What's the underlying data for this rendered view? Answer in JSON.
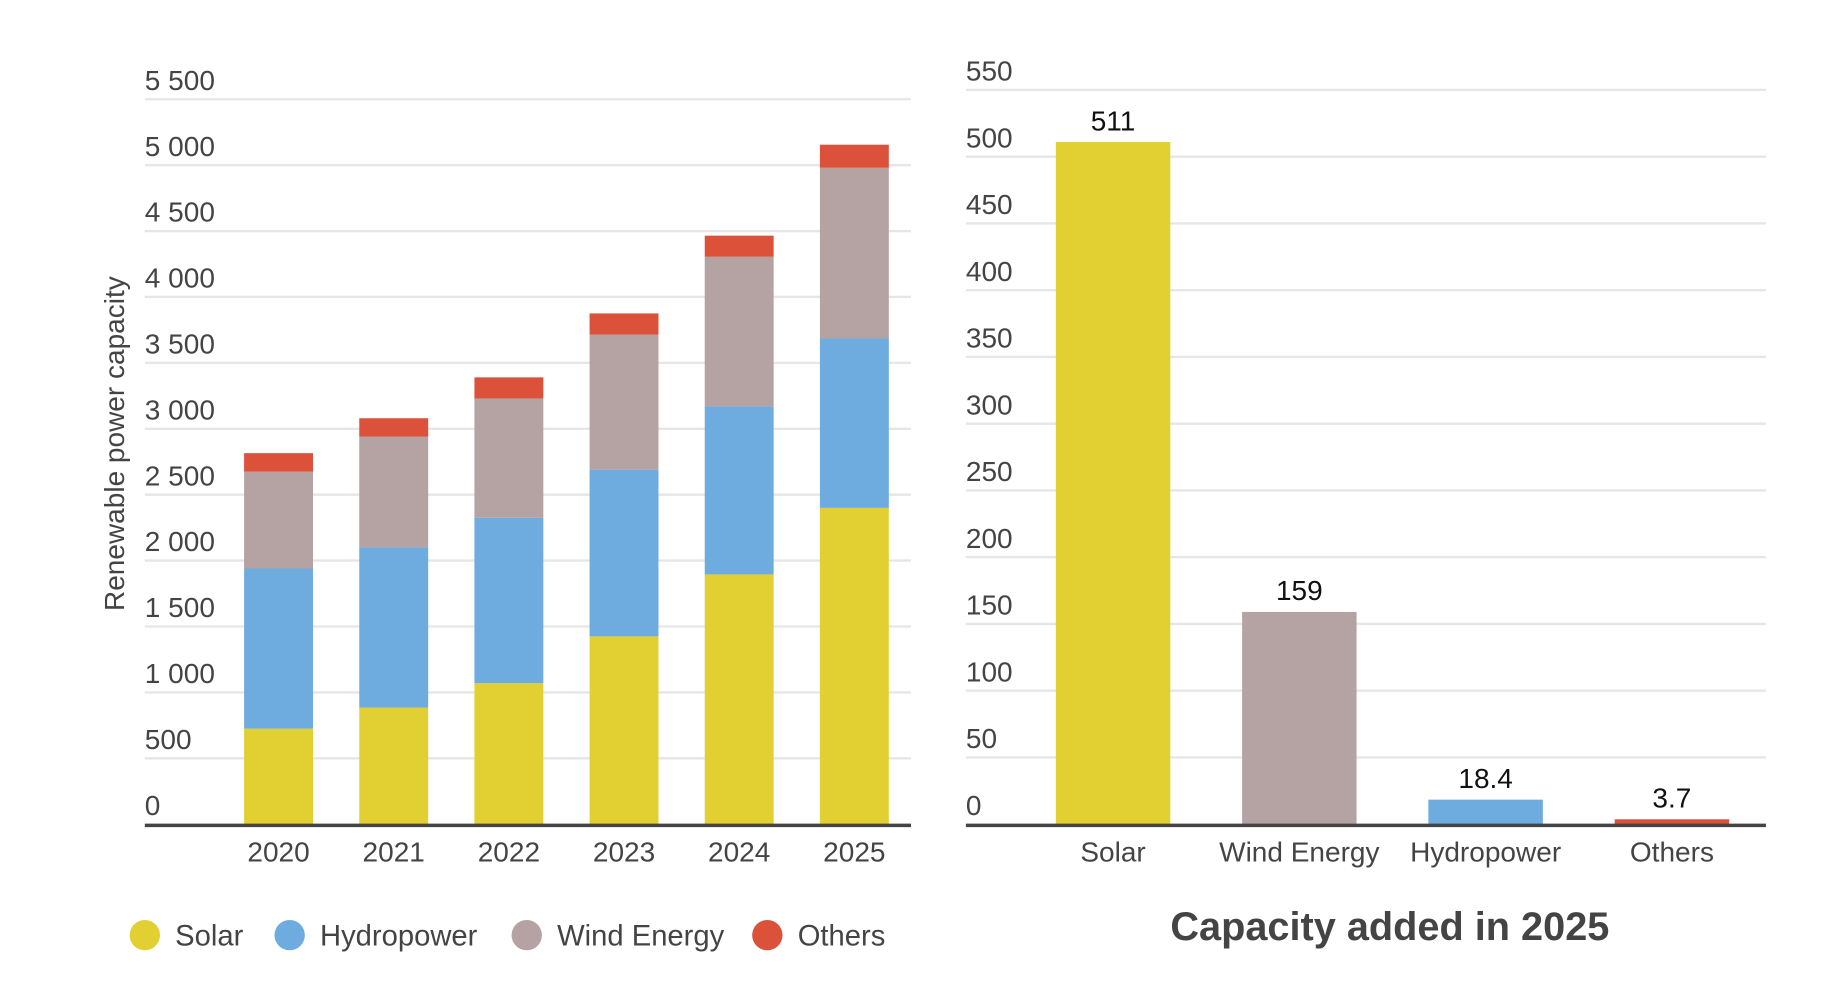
{
  "colors": {
    "Solar": "#E2D033",
    "Hydropower": "#6EABDF",
    "Wind Energy": "#B5A2A3",
    "Others": "#DC513A"
  },
  "chart_data": [
    {
      "type": "bar",
      "stacked": true,
      "title": "",
      "xlabel": "",
      "ylabel": "Renewable power capacity",
      "categories": [
        "2020",
        "2021",
        "2022",
        "2023",
        "2024",
        "2025"
      ],
      "yticks": [
        0,
        500,
        1000,
        1500,
        2000,
        2500,
        3000,
        3500,
        4000,
        4500,
        5000,
        5500
      ],
      "ytick_labels": [
        "0",
        "500",
        "1 000",
        "1 500",
        "2 000",
        "2 500",
        "3 000",
        "3 500",
        "4 000",
        "4 500",
        "5 000",
        "5 500"
      ],
      "ylim": [
        0,
        5500
      ],
      "grid": true,
      "legend": "bottom",
      "series": [
        {
          "name": "Solar",
          "values": [
            725,
            885,
            1070,
            1425,
            1895,
            2400
          ]
        },
        {
          "name": "Hydropower",
          "values": [
            1215,
            1215,
            1255,
            1265,
            1275,
            1285
          ]
        },
        {
          "name": "Wind Energy",
          "values": [
            735,
            840,
            905,
            1025,
            1135,
            1295
          ]
        },
        {
          "name": "Others",
          "values": [
            140,
            140,
            160,
            160,
            160,
            175
          ]
        }
      ],
      "legend_entries": [
        "Solar",
        "Hydropower",
        "Wind Energy",
        "Others"
      ]
    },
    {
      "type": "bar",
      "title": "Capacity added in 2025",
      "xlabel": "",
      "ylabel": "",
      "categories": [
        "Solar",
        "Wind Energy",
        "Hydropower",
        "Others"
      ],
      "values": [
        511,
        159,
        18.4,
        3.7
      ],
      "data_labels": [
        "511",
        "159",
        "18.4",
        "3.7"
      ],
      "yticks": [
        0,
        50,
        100,
        150,
        200,
        250,
        300,
        350,
        400,
        450,
        500,
        550
      ],
      "ytick_labels": [
        "0",
        "50",
        "100",
        "150",
        "200",
        "250",
        "300",
        "350",
        "400",
        "450",
        "500",
        "550"
      ],
      "ylim": [
        0,
        550
      ],
      "grid": true
    }
  ]
}
